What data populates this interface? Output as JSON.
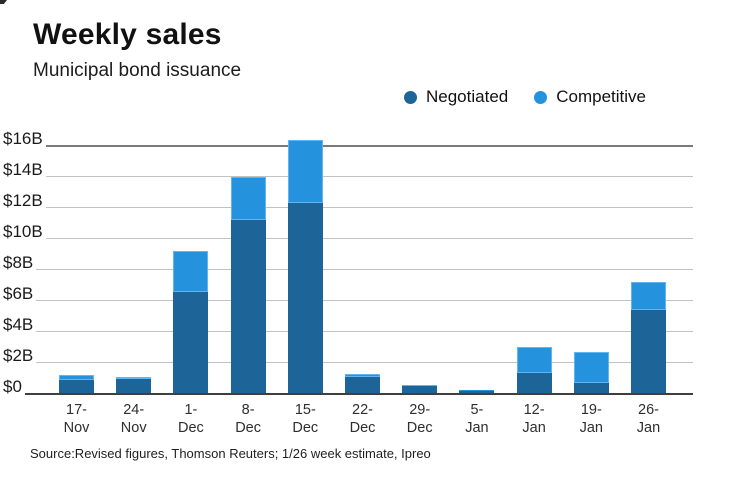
{
  "header": {
    "title": "Weekly sales",
    "subtitle": "Municipal bond issuance"
  },
  "source": "Source:Revised figures, Thomson Reuters; 1/26 week estimate, Ipreo",
  "colors": {
    "negotiated": "#1d6598",
    "competitive": "#2492dc",
    "gridline": "#c2c2c2",
    "axis_line": "#3f3f3f"
  },
  "chart_data": {
    "type": "bar",
    "stacked": true,
    "title": "Weekly sales",
    "subtitle": "Municipal bond issuance",
    "categories": [
      "17-Nov",
      "24-Nov",
      "1-Dec",
      "8-Dec",
      "15-Dec",
      "22-Dec",
      "29-Dec",
      "5-Jan",
      "12-Jan",
      "19-Jan",
      "26-Jan"
    ],
    "series": [
      {
        "name": "Negotiated",
        "color": "#1d6598",
        "values": [
          0.9,
          0.95,
          6.6,
          11.2,
          12.3,
          1.1,
          0.5,
          0.2,
          1.3,
          0.7,
          5.4
        ]
      },
      {
        "name": "Competitive",
        "color": "#2492dc",
        "values": [
          0.3,
          0.15,
          2.6,
          2.8,
          4.1,
          0.15,
          0.05,
          0.05,
          1.7,
          2.0,
          1.8
        ]
      }
    ],
    "totals": [
      1.2,
      1.1,
      9.2,
      14.0,
      16.4,
      1.25,
      0.55,
      0.25,
      3.0,
      2.7,
      7.2
    ],
    "unit": "billions USD",
    "y_ticks": [
      {
        "v": 16,
        "label": "$16B"
      },
      {
        "v": 14,
        "label": "$14B"
      },
      {
        "v": 12,
        "label": "$12B"
      },
      {
        "v": 10,
        "label": "$10B"
      },
      {
        "v": 8,
        "label": "$8B"
      },
      {
        "v": 6,
        "label": "$6B"
      },
      {
        "v": 4,
        "label": "$4B"
      },
      {
        "v": 2,
        "label": "$2B"
      },
      {
        "v": 0,
        "label": "$0"
      }
    ],
    "ylim": [
      0,
      16
    ],
    "xlabel": "",
    "ylabel": "",
    "grid": true,
    "legend_position": "top-right"
  }
}
